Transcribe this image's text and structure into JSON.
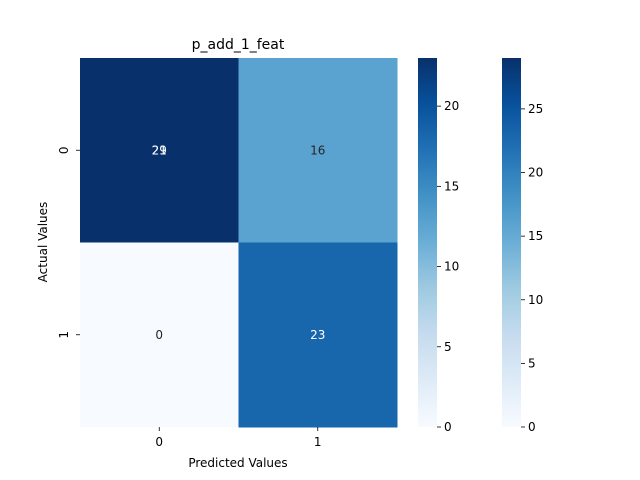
{
  "chart_data": {
    "type": "heatmap",
    "title": "p_add_1_feat",
    "xlabel": "Predicted Values",
    "ylabel": "Actual Values",
    "x_categories": [
      "0",
      "1"
    ],
    "y_categories": [
      "0",
      "1"
    ],
    "values": [
      [
        29,
        16
      ],
      [
        0,
        23
      ]
    ],
    "cell_labels": [
      [
        "29",
        "16"
      ],
      [
        "0",
        "23"
      ]
    ],
    "overlay_labels": [
      [
        "21",
        "16"
      ],
      [
        "0",
        "23"
      ]
    ],
    "colormap": "Blues",
    "colorbars": [
      {
        "vmin": 0,
        "vmax": 23,
        "ticks": [
          "0",
          "5",
          "10",
          "15",
          "20"
        ],
        "tick_values": [
          0,
          5,
          10,
          15,
          20
        ]
      },
      {
        "vmin": 0,
        "vmax": 29,
        "ticks": [
          "0",
          "5",
          "10",
          "15",
          "20",
          "25"
        ],
        "tick_values": [
          0,
          5,
          10,
          15,
          20,
          25
        ]
      }
    ],
    "legend": "colorbar-right"
  }
}
